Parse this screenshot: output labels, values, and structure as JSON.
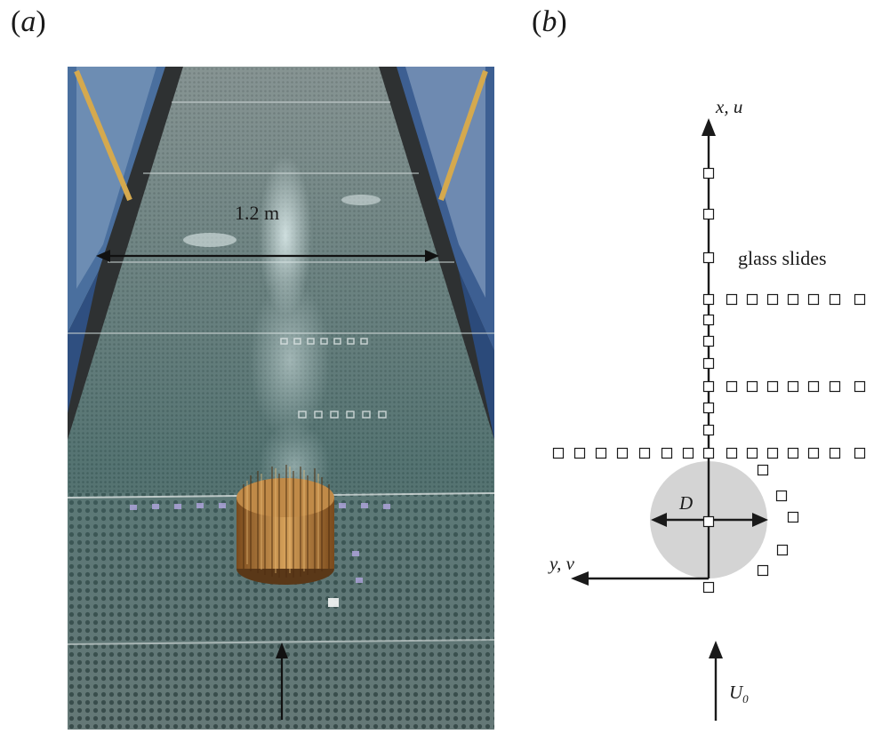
{
  "panels": {
    "a": {
      "label_open": "(",
      "label_letter": "a",
      "label_close": ")"
    },
    "b": {
      "label_open": "(",
      "label_letter": "b",
      "label_close": ")"
    }
  },
  "photo": {
    "width_label": "1.2 m"
  },
  "schematic": {
    "x_axis_label": "x, u",
    "y_axis_label": "y, v",
    "glass_slides_label": "glass slides",
    "diameter_label": "D",
    "freestream_label": "U",
    "freestream_subscript": "0",
    "colors": {
      "patch": "#d4d4d4",
      "ink": "#1a1a1a"
    }
  }
}
